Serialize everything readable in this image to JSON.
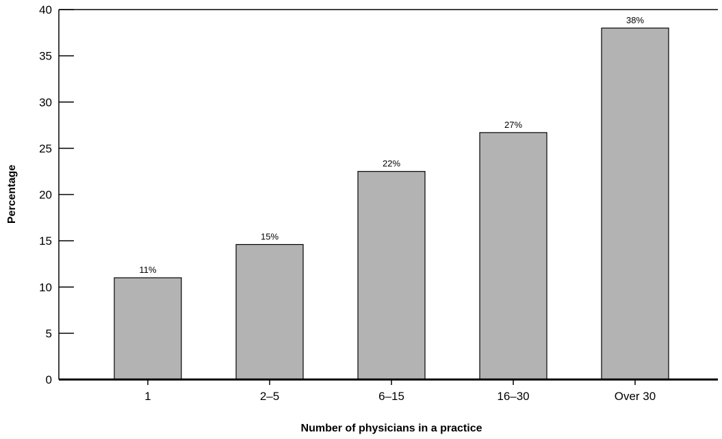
{
  "chart_data": {
    "type": "bar",
    "title": "",
    "xlabel": "Number of physicians in a practice",
    "ylabel": "Percentage",
    "categories": [
      "1",
      "2–5",
      "6–15",
      "16–30",
      "Over 30"
    ],
    "values": [
      11,
      14.6,
      22.5,
      26.7,
      38
    ],
    "data_labels": [
      "11%",
      "15%",
      "22%",
      "27%",
      "38%"
    ],
    "ylim": [
      0,
      40
    ],
    "yticks": [
      0,
      5,
      10,
      15,
      20,
      25,
      30,
      35,
      40
    ],
    "ytick_labels": [
      "0",
      "5",
      "10",
      "15",
      "20",
      "25",
      "30",
      "35",
      "40"
    ],
    "grid": false,
    "legend": "none",
    "colors": {
      "bar_fill": "#b3b3b3",
      "bar_stroke": "#000000",
      "axis": "#000000"
    }
  }
}
